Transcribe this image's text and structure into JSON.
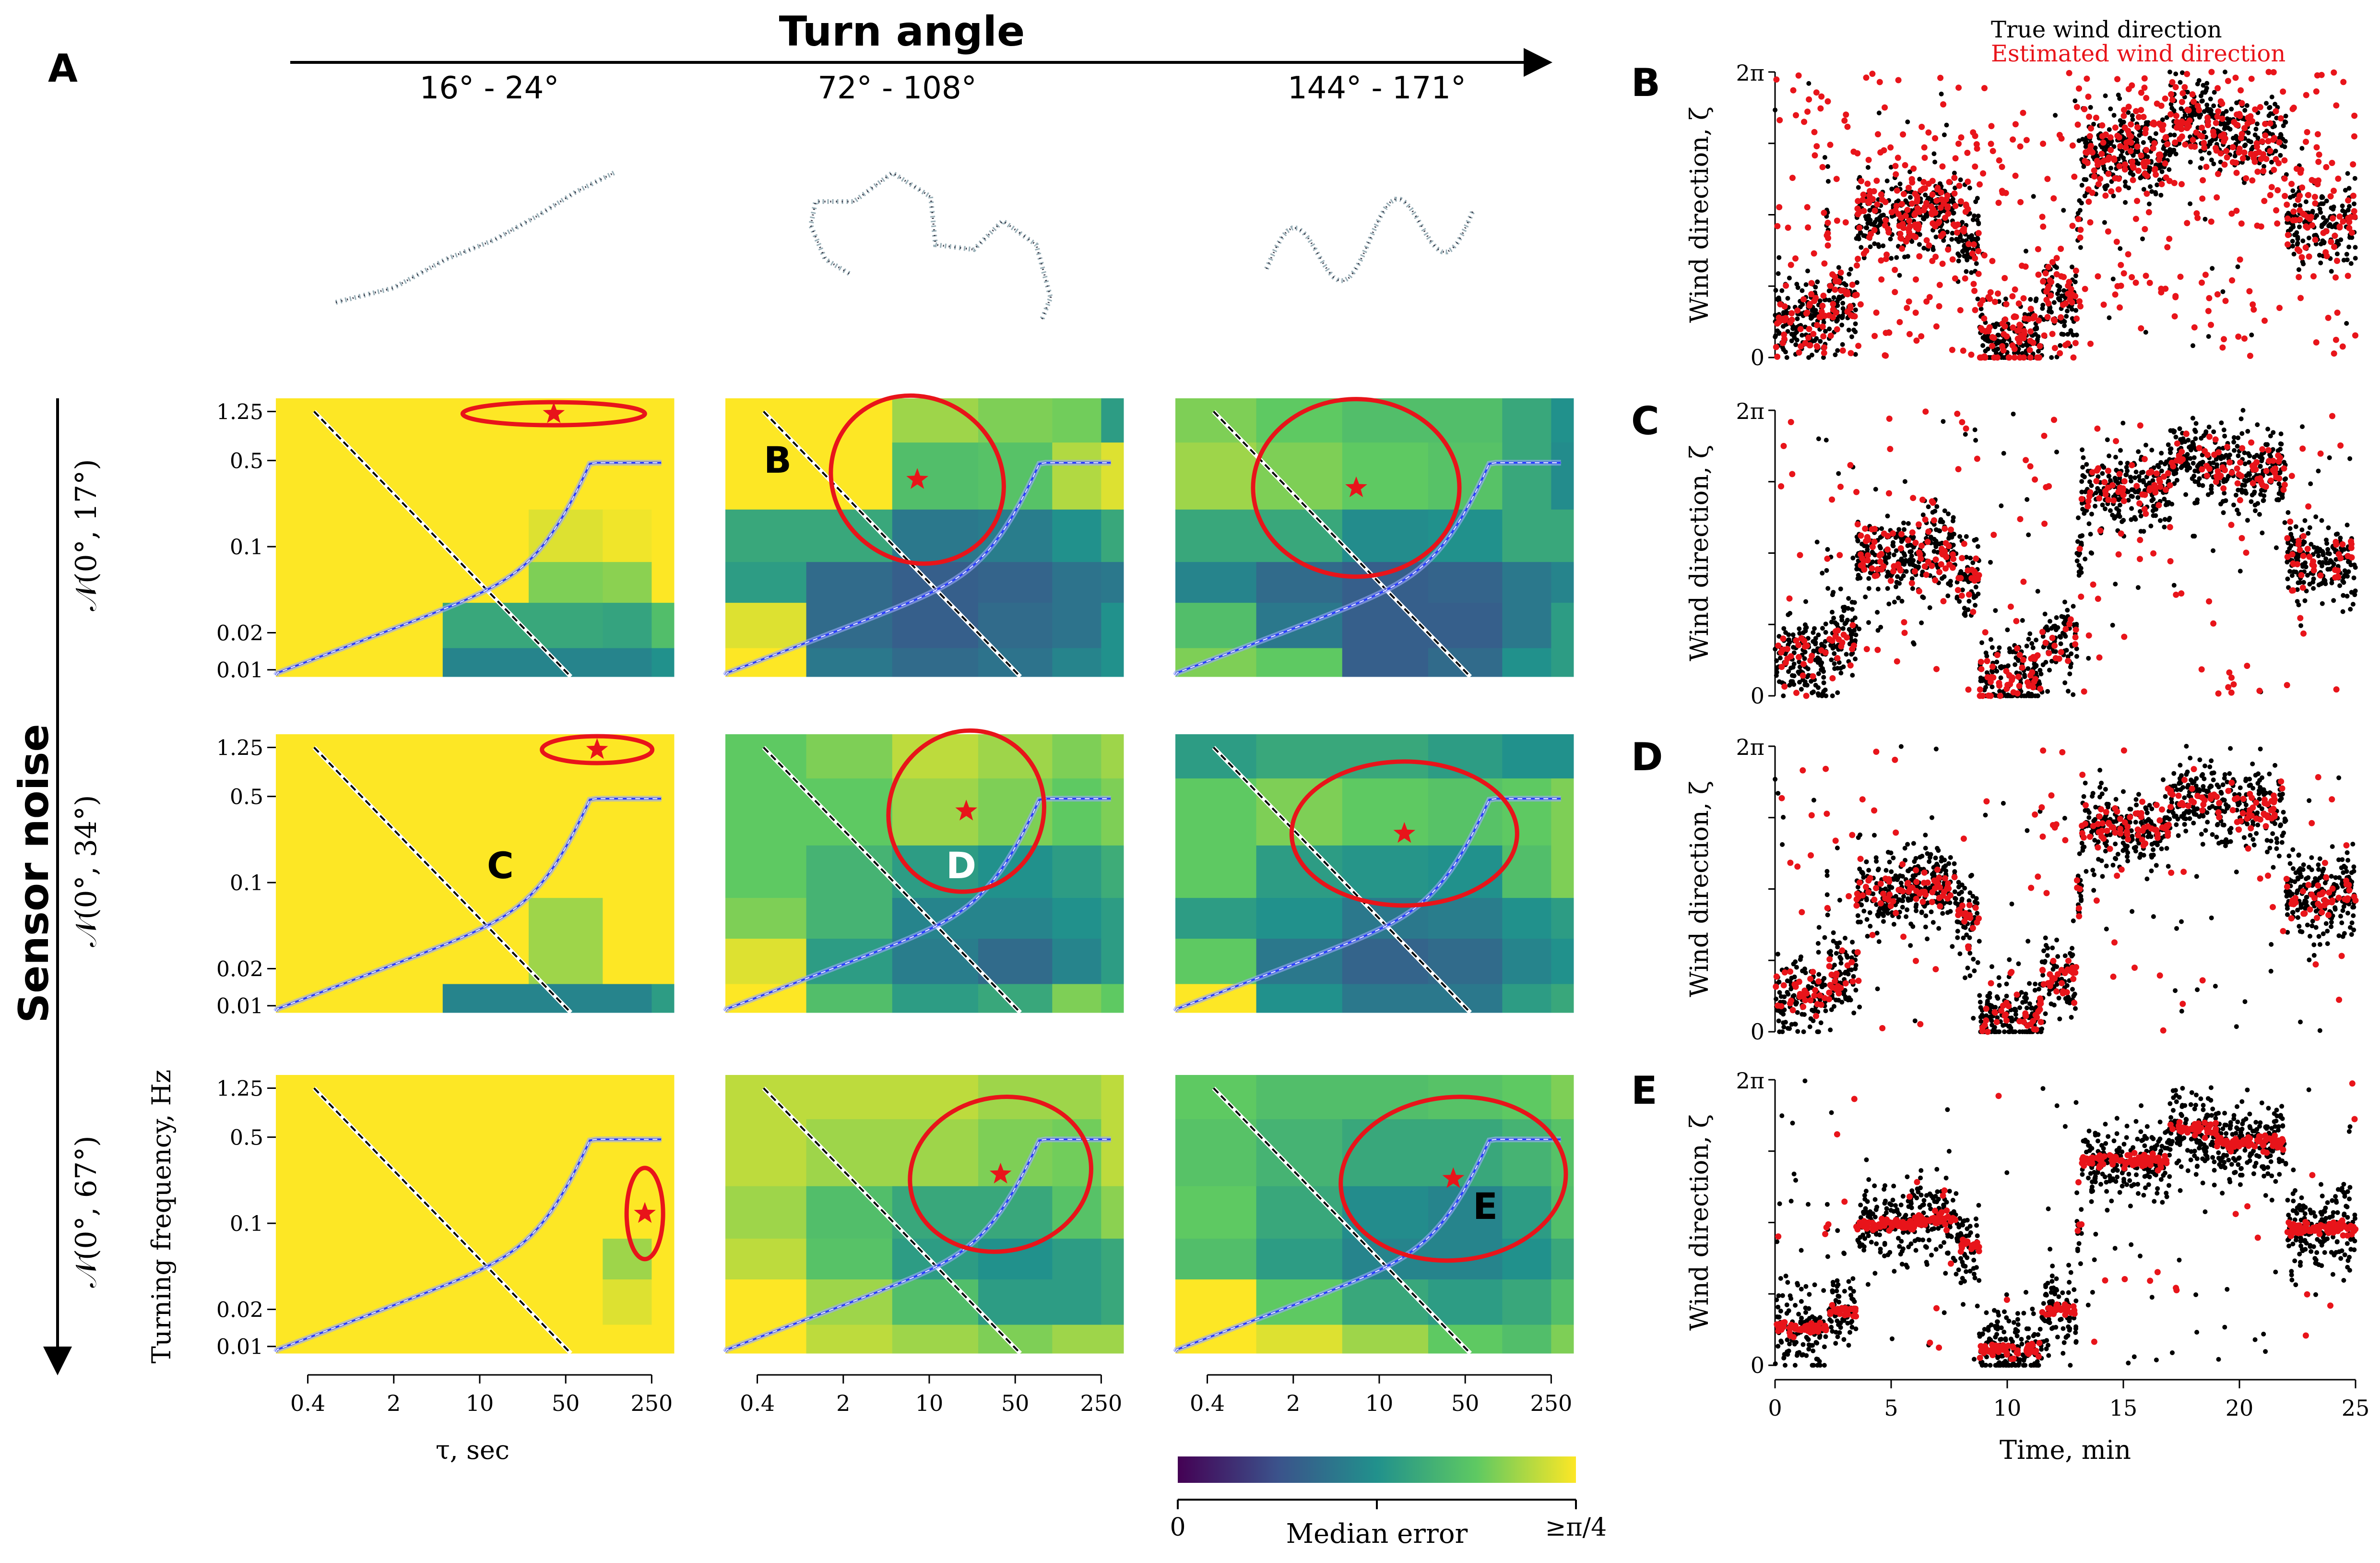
{
  "panel_letters": {
    "A": "A",
    "B": "B",
    "C": "C",
    "D": "D",
    "E": "E"
  },
  "turn_angle": {
    "title": "Turn angle",
    "ranges": [
      "16° - 24°",
      "72° - 108°",
      "144° - 171°"
    ]
  },
  "sensor_noise": {
    "title": "Sensor noise",
    "rows": [
      "𝒩(0°, 17°)",
      "𝒩(0°, 34°)",
      "𝒩(0°, 67°)"
    ]
  },
  "heatmap_axes": {
    "ylabel": "Turning frequency, Hz",
    "xlabel": "τ, sec",
    "yticks": [
      "1.25",
      "0.5",
      "0.1",
      "0.02",
      "0.01"
    ],
    "xticks": [
      "0.4",
      "2",
      "10",
      "50",
      "250"
    ]
  },
  "heatmap_annotations": [
    {
      "row": 0,
      "col": 1,
      "label": "B",
      "color": "black"
    },
    {
      "row": 1,
      "col": 0,
      "label": "C",
      "color": "black"
    },
    {
      "row": 1,
      "col": 1,
      "label": "D",
      "color": "white"
    },
    {
      "row": 2,
      "col": 2,
      "label": "E",
      "color": "black"
    }
  ],
  "colorbar": {
    "label": "Median error",
    "min_label": "0",
    "max_label": "≥π/4",
    "colormap": "viridis"
  },
  "timeseries": {
    "ylabel": "Wind direction, ζ",
    "xlabel": "Time, min",
    "ytick_top": "2π",
    "ytick_bottom": "0",
    "xticks": [
      "0",
      "5",
      "10",
      "15",
      "20",
      "25"
    ],
    "legend": {
      "true": "True wind direction",
      "estimated": "Estimated wind direction"
    },
    "colors": {
      "true": "#000000",
      "estimated": "#e8141a"
    }
  },
  "chart_data": [
    {
      "type": "heatmap",
      "panel": "A",
      "rows": [
        "𝒩(0°, 17°)",
        "𝒩(0°, 34°)",
        "𝒩(0°, 67°)"
      ],
      "cols": [
        "16° - 24°",
        "72° - 108°",
        "144° - 171°"
      ],
      "x_scale": "log",
      "y_scale": "log",
      "x_range": [
        0.4,
        250
      ],
      "y_range": [
        0.01,
        1.25
      ],
      "color_range": [
        0,
        0.785
      ],
      "x_edges": [
        0.2,
        1,
        5,
        25,
        100,
        250,
        400
      ],
      "y_edges": [
        0.008,
        0.015,
        0.035,
        0.075,
        0.2,
        0.7,
        2.0
      ],
      "grids": [
        [
          [
            [
              1,
              1,
              1,
              1,
              1,
              1
            ],
            [
              1,
              1,
              1,
              1,
              1,
              1
            ],
            [
              1,
              1,
              1,
              0.95,
              0.98,
              1
            ],
            [
              1,
              1,
              1,
              0.8,
              0.82,
              1
            ],
            [
              1,
              1,
              0.6,
              0.6,
              0.58,
              0.7
            ],
            [
              1,
              1,
              0.45,
              0.45,
              0.45,
              0.5
            ]
          ],
          [
            [
              1,
              1,
              0.85,
              0.8,
              0.78,
              0.55
            ],
            [
              1,
              1,
              0.7,
              0.72,
              0.88,
              0.95
            ],
            [
              0.6,
              0.6,
              0.4,
              0.42,
              0.5,
              0.6
            ],
            [
              0.55,
              0.35,
              0.3,
              0.32,
              0.38,
              0.4
            ],
            [
              0.95,
              0.35,
              0.3,
              0.35,
              0.38,
              0.5
            ],
            [
              1,
              0.4,
              0.35,
              0.38,
              0.45,
              0.5
            ]
          ],
          [
            [
              0.8,
              0.75,
              0.7,
              0.7,
              0.6,
              0.5
            ],
            [
              0.85,
              0.8,
              0.75,
              0.72,
              0.6,
              0.48
            ],
            [
              0.6,
              0.6,
              0.48,
              0.5,
              0.6,
              0.6
            ],
            [
              0.45,
              0.35,
              0.3,
              0.32,
              0.4,
              0.45
            ],
            [
              0.7,
              0.4,
              0.3,
              0.3,
              0.4,
              0.55
            ],
            [
              0.8,
              0.75,
              0.3,
              0.35,
              0.5,
              0.55
            ]
          ]
        ],
        [
          [
            [
              1,
              1,
              1,
              1,
              1,
              1
            ],
            [
              1,
              1,
              1,
              1,
              1,
              1
            ],
            [
              1,
              1,
              1,
              1,
              1,
              1
            ],
            [
              1,
              1,
              1,
              0.85,
              1,
              1
            ],
            [
              1,
              1,
              1,
              0.85,
              1,
              1
            ],
            [
              1,
              1,
              0.45,
              0.45,
              0.45,
              0.55
            ]
          ],
          [
            [
              0.75,
              0.8,
              0.9,
              0.85,
              0.8,
              0.85
            ],
            [
              0.75,
              0.75,
              0.85,
              0.8,
              0.75,
              0.8
            ],
            [
              0.75,
              0.65,
              0.55,
              0.5,
              0.55,
              0.62
            ],
            [
              0.8,
              0.65,
              0.45,
              0.45,
              0.5,
              0.55
            ],
            [
              0.95,
              0.55,
              0.42,
              0.35,
              0.45,
              0.55
            ],
            [
              1,
              0.7,
              0.55,
              0.6,
              0.8,
              0.75
            ]
          ],
          [
            [
              0.55,
              0.6,
              0.6,
              0.55,
              0.5,
              0.5
            ],
            [
              0.75,
              0.8,
              0.75,
              0.72,
              0.75,
              0.8
            ],
            [
              0.75,
              0.55,
              0.52,
              0.5,
              0.7,
              0.8
            ],
            [
              0.55,
              0.5,
              0.4,
              0.42,
              0.5,
              0.55
            ],
            [
              0.75,
              0.4,
              0.32,
              0.35,
              0.45,
              0.5
            ],
            [
              1,
              0.5,
              0.4,
              0.4,
              0.55,
              0.6
            ]
          ]
        ],
        [
          [
            [
              1,
              1,
              1,
              1,
              1,
              1
            ],
            [
              1,
              1,
              1,
              1,
              1,
              1
            ],
            [
              1,
              1,
              1,
              1,
              1,
              1
            ],
            [
              1,
              1,
              1,
              1,
              0.85,
              1
            ],
            [
              1,
              1,
              1,
              1,
              0.95,
              1
            ],
            [
              1,
              1,
              1,
              1,
              1,
              1
            ]
          ],
          [
            [
              0.9,
              0.9,
              0.9,
              0.85,
              0.85,
              0.9
            ],
            [
              0.9,
              0.85,
              0.85,
              0.8,
              0.78,
              0.9
            ],
            [
              0.85,
              0.7,
              0.6,
              0.6,
              0.72,
              0.82
            ],
            [
              0.9,
              0.72,
              0.55,
              0.5,
              0.55,
              0.6
            ],
            [
              1,
              0.85,
              0.7,
              0.55,
              0.55,
              0.6
            ],
            [
              1,
              0.9,
              0.85,
              0.8,
              0.85,
              0.85
            ]
          ],
          [
            [
              0.75,
              0.7,
              0.7,
              0.72,
              0.75,
              0.8
            ],
            [
              0.72,
              0.65,
              0.6,
              0.6,
              0.65,
              0.72
            ],
            [
              0.75,
              0.6,
              0.48,
              0.45,
              0.55,
              0.7
            ],
            [
              0.7,
              0.55,
              0.45,
              0.45,
              0.5,
              0.6
            ],
            [
              1,
              0.75,
              0.6,
              0.55,
              0.6,
              0.7
            ],
            [
              1,
              0.95,
              0.85,
              0.75,
              0.7,
              0.8
            ]
          ]
        ]
      ],
      "optima": [
        [
          {
            "tau": 40,
            "freq": 1.2
          },
          {
            "tau": 8,
            "freq": 0.35
          },
          {
            "tau": 6.5,
            "freq": 0.3
          }
        ],
        [
          {
            "tau": 90,
            "freq": 1.2
          },
          {
            "tau": 20,
            "freq": 0.38
          },
          {
            "tau": 16,
            "freq": 0.25
          }
        ],
        [
          {
            "tau": 220,
            "freq": 0.12
          },
          {
            "tau": 38,
            "freq": 0.25
          },
          {
            "tau": 40,
            "freq": 0.23
          }
        ]
      ]
    },
    {
      "type": "scatter",
      "panels": [
        "B",
        "C",
        "D",
        "E"
      ],
      "x_range": [
        0,
        25
      ],
      "y_range": [
        0,
        6.283
      ],
      "true_series": {
        "name": "True wind direction",
        "segments": [
          [
            0,
            2.2,
            0.8
          ],
          [
            2.3,
            3.5,
            1.2
          ],
          [
            3.6,
            6,
            3.1
          ],
          [
            6,
            7.8,
            3.2
          ],
          [
            7.8,
            8.8,
            2.6
          ],
          [
            8.8,
            11.5,
            0.35
          ],
          [
            11.5,
            13,
            1.2
          ],
          [
            13.2,
            17,
            4.5
          ],
          [
            17,
            19,
            5.2
          ],
          [
            19,
            22,
            4.9
          ],
          [
            22,
            25,
            3.0
          ]
        ]
      }
    }
  ]
}
